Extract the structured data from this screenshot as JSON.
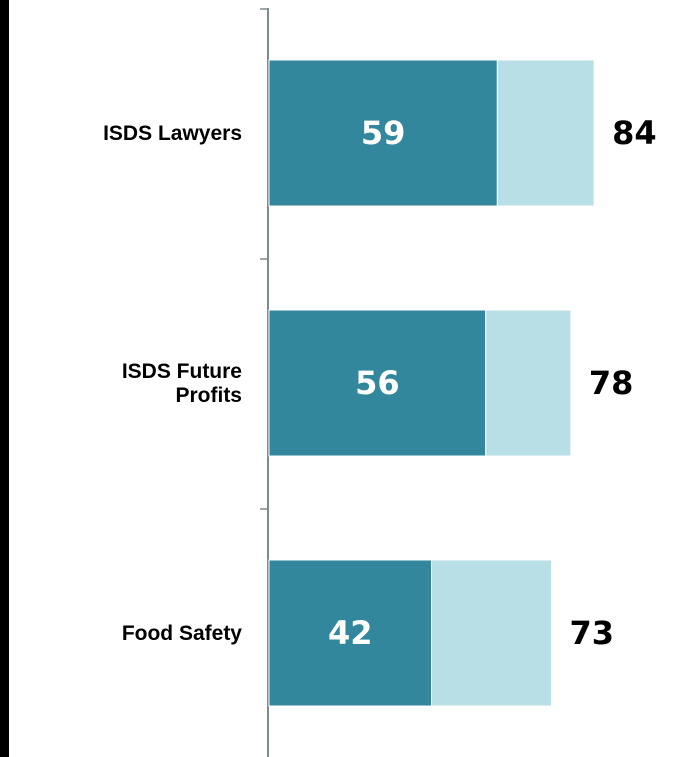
{
  "chart_data": {
    "type": "bar",
    "orientation": "horizontal",
    "stacked": true,
    "categories": [
      [
        "ISDS Lawyers"
      ],
      [
        "ISDS Future",
        "Profits"
      ],
      [
        "Food Safety"
      ]
    ],
    "series": [
      {
        "values": [
          59,
          56,
          42
        ],
        "color": "#32879c"
      },
      {
        "values": [
          25,
          22,
          31
        ],
        "color": "#b8dee6"
      }
    ],
    "totals": [
      84,
      78,
      73
    ],
    "xlim": [
      0,
      90
    ],
    "title": "",
    "xlabel": "",
    "ylabel": "",
    "grid": false,
    "legend": "none"
  },
  "colors": {
    "axis": "#7f8c8d",
    "border": "#000000",
    "dark": "#32879c",
    "light": "#b8dee6"
  }
}
